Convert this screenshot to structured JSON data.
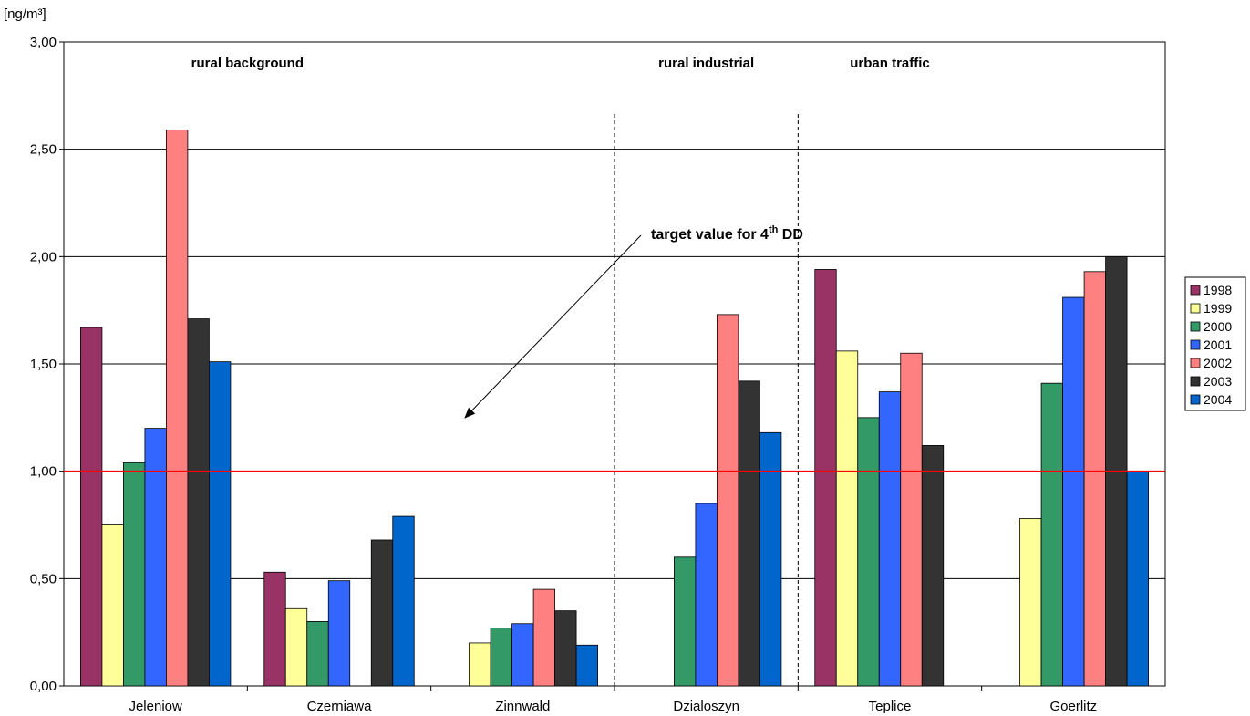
{
  "chart_data": {
    "type": "bar",
    "ylabel": "[ng/m³]",
    "ylim": [
      0,
      3
    ],
    "yticks": [
      "0,00",
      "0,50",
      "1,00",
      "1,50",
      "2,00",
      "2,50",
      "3,00"
    ],
    "ytick_values": [
      0,
      0.5,
      1.0,
      1.5,
      2.0,
      2.5,
      3.0
    ],
    "grid": true,
    "legend_position": "right",
    "categories": [
      "Jeleniow",
      "Czerniawa",
      "Zinnwald",
      "Dzialoszyn",
      "Teplice",
      "Goerlitz"
    ],
    "series": [
      {
        "name": "1998",
        "color": "#993366",
        "values": [
          1.67,
          0.53,
          null,
          null,
          1.94,
          null
        ]
      },
      {
        "name": "1999",
        "color": "#FFFF99",
        "values": [
          0.75,
          0.36,
          0.2,
          null,
          1.56,
          0.78
        ]
      },
      {
        "name": "2000",
        "color": "#339966",
        "values": [
          1.04,
          0.3,
          0.27,
          0.6,
          1.25,
          1.41
        ]
      },
      {
        "name": "2001",
        "color": "#3366FF",
        "values": [
          1.2,
          0.49,
          0.29,
          0.85,
          1.37,
          1.81
        ]
      },
      {
        "name": "2002",
        "color": "#FF8080",
        "values": [
          2.59,
          null,
          0.45,
          1.73,
          1.55,
          1.93
        ]
      },
      {
        "name": "2003",
        "color": "#333333",
        "values": [
          1.71,
          0.68,
          0.35,
          1.42,
          1.12,
          2.0
        ]
      },
      {
        "name": "2004",
        "color": "#0066CC",
        "values": [
          1.51,
          0.79,
          0.19,
          1.18,
          null,
          1.0
        ]
      }
    ],
    "reference_line": {
      "value": 1.0,
      "color": "#FF0000"
    },
    "region_labels": [
      "rural background",
      "rural industrial",
      "urban traffic"
    ],
    "annotation": {
      "text": "target value for 4",
      "superscript": "th",
      "suffix": " DD"
    }
  }
}
